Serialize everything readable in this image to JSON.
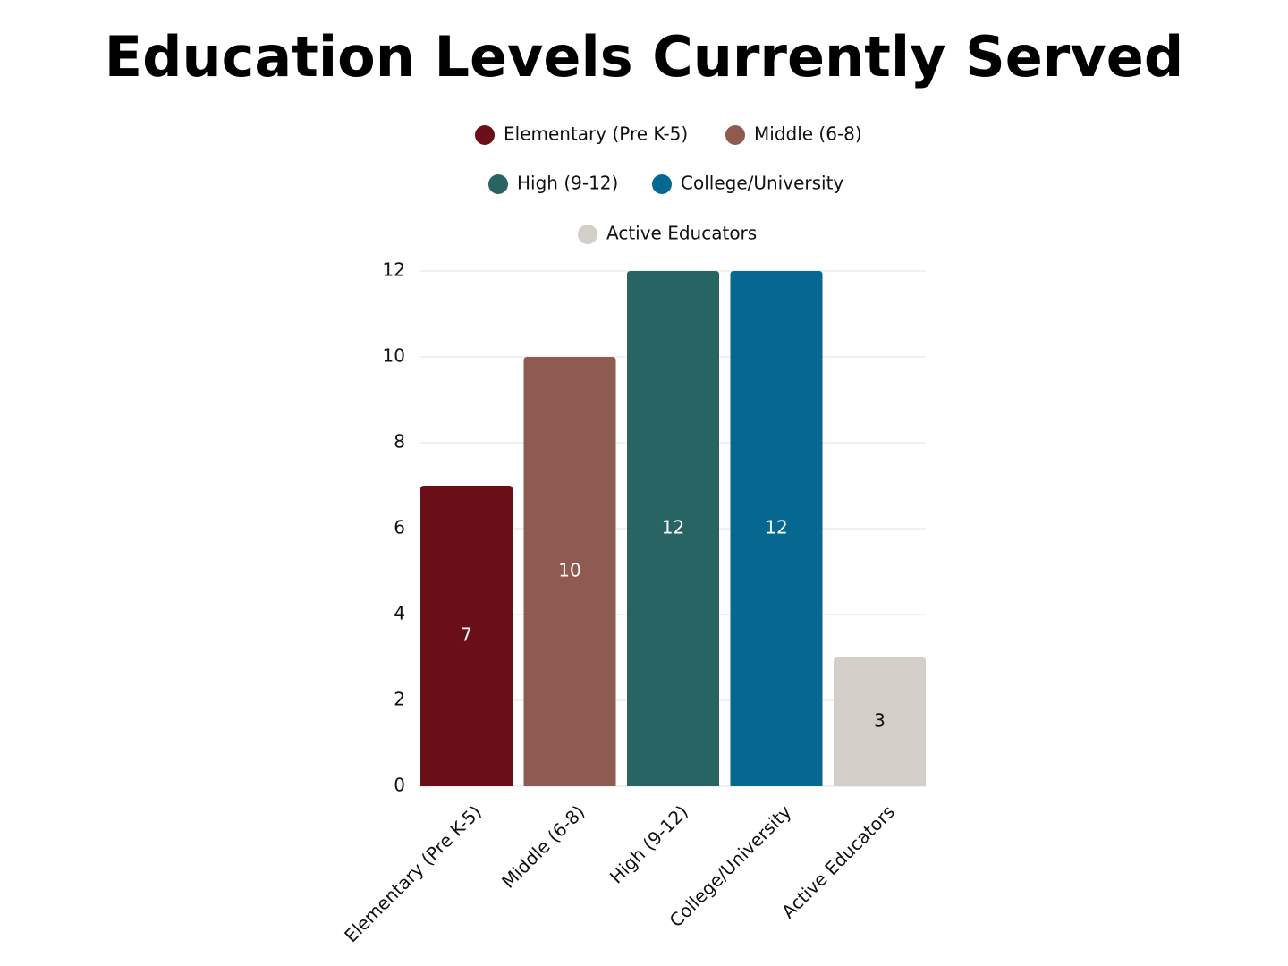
{
  "chart_data": {
    "type": "bar",
    "title": "Education Levels Currently Served",
    "categories": [
      "Elementary (Pre K-5)",
      "Middle (6-8)",
      "High (9-12)",
      "College/University",
      "Active Educators"
    ],
    "values": [
      7,
      10,
      12,
      12,
      3
    ],
    "colors": [
      "#6a0f17",
      "#8f5a4f",
      "#286464",
      "#066890",
      "#d3cec8"
    ],
    "ylim": [
      0,
      12
    ],
    "yticks": [
      0,
      2,
      4,
      6,
      8,
      10,
      12
    ],
    "grid": true,
    "legend": "top",
    "data_labels": true
  }
}
